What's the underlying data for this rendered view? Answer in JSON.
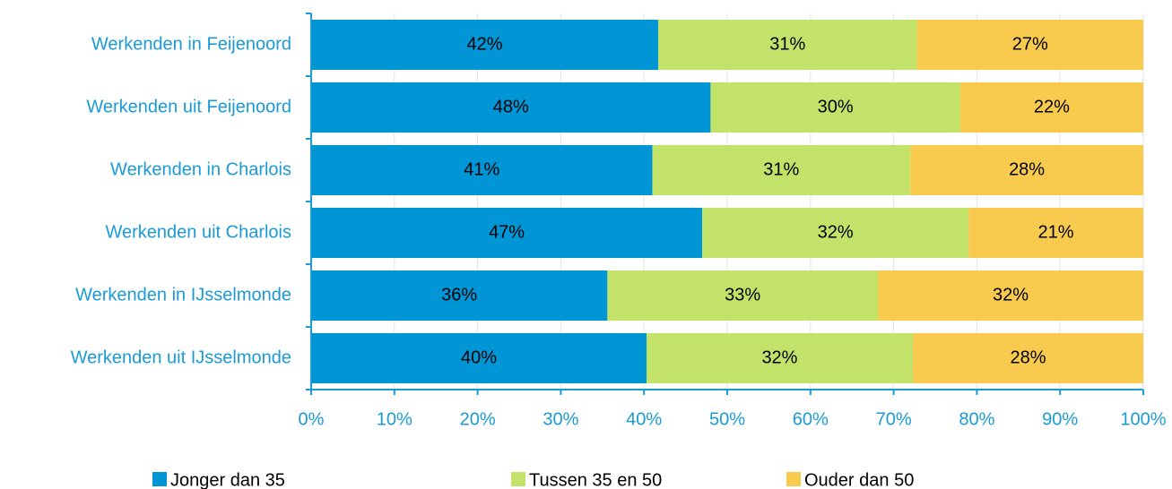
{
  "chart_data": {
    "type": "stacked-bar-horizontal",
    "categories": [
      "Werkenden in Feijenoord",
      "Werkenden uit Feijenoord",
      "Werkenden in Charlois",
      "Werkenden uit Charlois",
      "Werkenden in IJsselmonde",
      "Werkenden uit IJsselmonde"
    ],
    "series": [
      {
        "name": "Jonger dan 35",
        "color": "#0096d6",
        "values": [
          41.7,
          48,
          41,
          47,
          35.6,
          40.3
        ],
        "value_labels": [
          "42%",
          "48%",
          "41%",
          "47%",
          "36%",
          "40%"
        ]
      },
      {
        "name": "Tussen 35 en 50",
        "color": "#c2e26a",
        "values": [
          31.1,
          30,
          31,
          32,
          32.5,
          32
        ],
        "value_labels": [
          "31%",
          "30%",
          "31%",
          "32%",
          "33%",
          "32%"
        ]
      },
      {
        "name": "Ouder dan 50",
        "color": "#f8cb4f",
        "values": [
          27.2,
          22,
          28,
          21,
          31.9,
          27.7
        ],
        "value_labels": [
          "27%",
          "22%",
          "28%",
          "21%",
          "32%",
          "28%"
        ]
      }
    ],
    "xlim": [
      0,
      100
    ],
    "xticks": [
      {
        "value": 0,
        "label": "0%"
      },
      {
        "value": 10,
        "label": "10%"
      },
      {
        "value": 20,
        "label": "20%"
      },
      {
        "value": 30,
        "label": "30%"
      },
      {
        "value": 40,
        "label": "40%"
      },
      {
        "value": 50,
        "label": "50%"
      },
      {
        "value": 60,
        "label": "60%"
      },
      {
        "value": 70,
        "label": "70%"
      },
      {
        "value": 80,
        "label": "80%"
      },
      {
        "value": 90,
        "label": "90%"
      },
      {
        "value": 100,
        "label": "100%"
      }
    ],
    "grid": true,
    "legend": "bottom"
  }
}
